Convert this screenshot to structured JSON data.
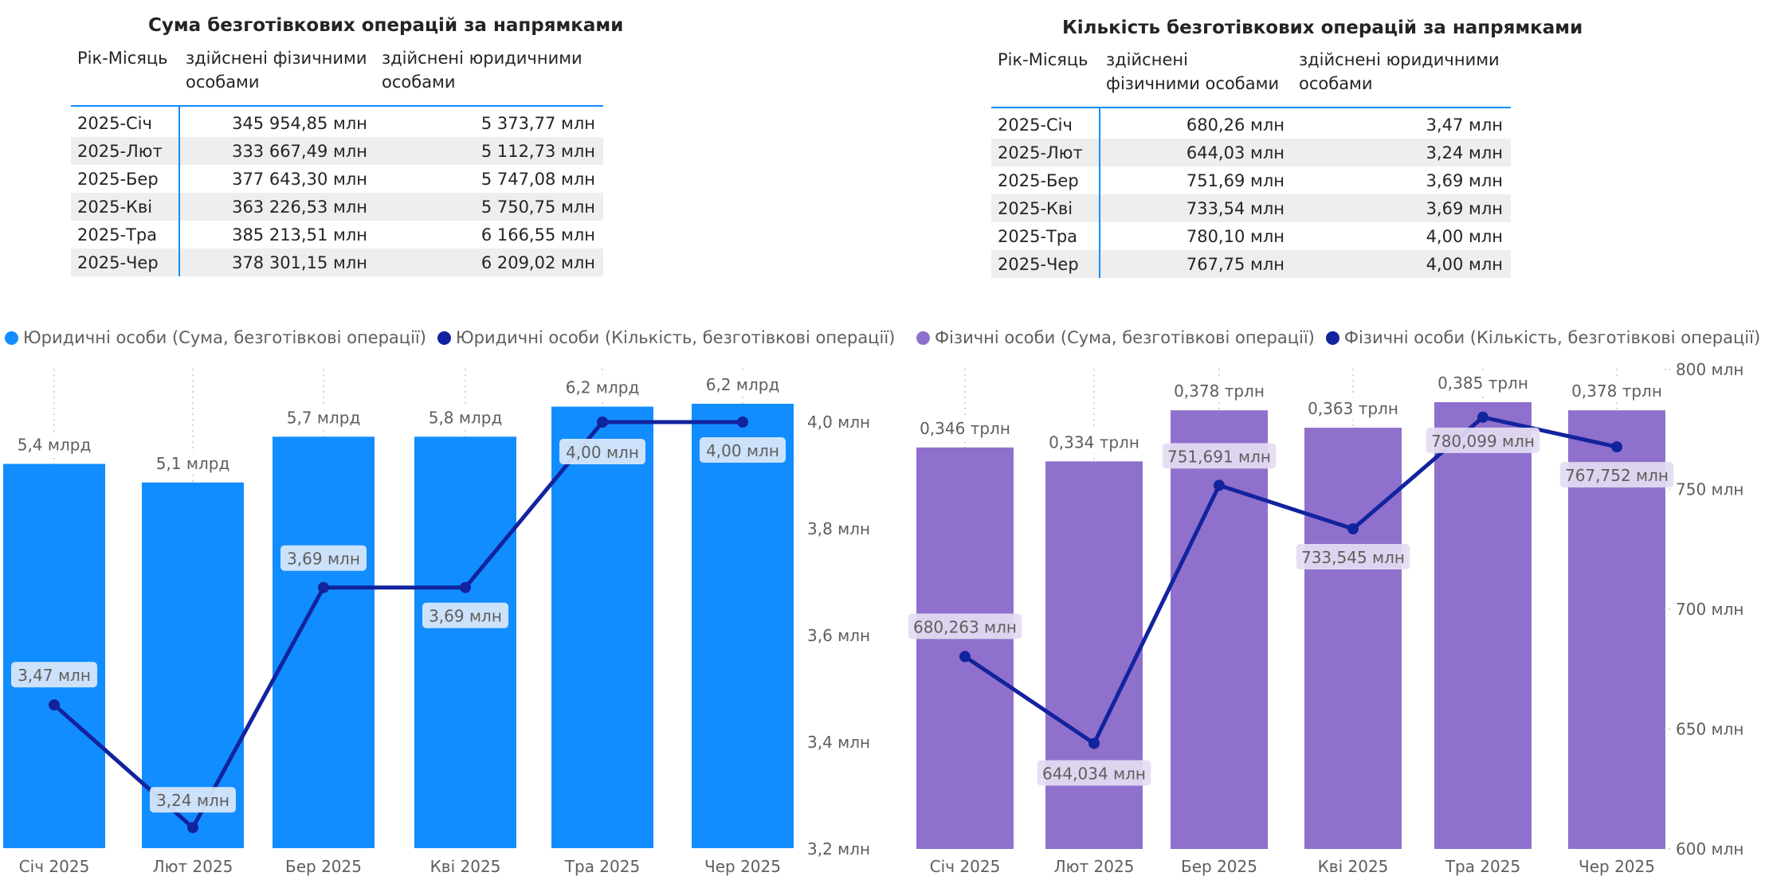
{
  "tables": [
    {
      "title": "Сума безготівкових операцій за напрямками",
      "headers": [
        "Рік-Місяць",
        "здійснені фізичними особами",
        "здійснені юридичними особами"
      ],
      "rows": [
        [
          "2025-Січ",
          "345 954,85 млн",
          "5 373,77 млн"
        ],
        [
          "2025-Лют",
          "333 667,49 млн",
          "5 112,73 млн"
        ],
        [
          "2025-Бер",
          "377 643,30 млн",
          "5 747,08 млн"
        ],
        [
          "2025-Кві",
          "363 226,53 млн",
          "5 750,75 млн"
        ],
        [
          "2025-Тра",
          "385 213,51 млн",
          "6 166,55 млн"
        ],
        [
          "2025-Чер",
          "378 301,15 млн",
          "6 209,02 млн"
        ]
      ]
    },
    {
      "title": "Кількість безготівкових операцій за напрямками",
      "headers": [
        "Рік-Місяць",
        "здійснені фізичними особами",
        "здійснені юридичними особами"
      ],
      "rows": [
        [
          "2025-Січ",
          "680,26 млн",
          "3,47 млн"
        ],
        [
          "2025-Лют",
          "644,03 млн",
          "3,24 млн"
        ],
        [
          "2025-Бер",
          "751,69 млн",
          "3,69 млн"
        ],
        [
          "2025-Кві",
          "733,54 млн",
          "3,69 млн"
        ],
        [
          "2025-Тра",
          "780,10 млн",
          "4,00 млн"
        ],
        [
          "2025-Чер",
          "767,75 млн",
          "4,00 млн"
        ]
      ]
    }
  ],
  "colors": {
    "legal_bar": "#118DFF",
    "physical_bar": "#8F70CC",
    "line": "#12239E"
  },
  "chart_data": [
    {
      "type": "bar",
      "title": "",
      "categories": [
        "Січ 2025",
        "Лют 2025",
        "Бер 2025",
        "Кві 2025",
        "Тра 2025",
        "Чер 2025"
      ],
      "series": [
        {
          "name": "Юридичні особи (Сума, безготівкові операції)",
          "kind": "bar",
          "axis": "left-hidden",
          "values": [
            5.37,
            5.11,
            5.75,
            5.75,
            6.17,
            6.21
          ],
          "labels": [
            "5,4 млрд",
            "5,1 млрд",
            "5,7 млрд",
            "5,8 млрд",
            "6,2 млрд",
            "6,2 млрд"
          ]
        },
        {
          "name": "Юридичні особи (Кількість, безготівкові операції)",
          "kind": "line",
          "axis": "right",
          "values": [
            3.47,
            3.24,
            3.69,
            3.69,
            4.0,
            4.0
          ],
          "labels": [
            "3,47 млн",
            "3,24 млн",
            "3,69 млн",
            "3,69 млн",
            "4,00 млн",
            "4,00 млн"
          ]
        }
      ],
      "y_right": {
        "min": 3.2,
        "max": 4.0,
        "ticks": [
          "3,2 млн",
          "3,4 млн",
          "3,6 млн",
          "3,8 млн",
          "4,0 млн"
        ]
      },
      "bar_scale_max": 6.21,
      "legend": "top-left"
    },
    {
      "type": "bar",
      "title": "",
      "categories": [
        "Січ 2025",
        "Лют 2025",
        "Бер 2025",
        "Кві 2025",
        "Тра 2025",
        "Чер 2025"
      ],
      "series": [
        {
          "name": "Фізичні особи (Сума, безготівкові операції)",
          "kind": "bar",
          "axis": "left-hidden",
          "values": [
            0.346,
            0.334,
            0.378,
            0.363,
            0.385,
            0.378
          ],
          "labels": [
            "0,346 трлн",
            "0,334 трлн",
            "0,378 трлн",
            "0,363 трлн",
            "0,385 трлн",
            "0,378 трлн"
          ]
        },
        {
          "name": "Фізичні особи (Кількість, безготівкові операції)",
          "kind": "line",
          "axis": "right",
          "values": [
            680.263,
            644.034,
            751.691,
            733.545,
            780.099,
            767.752
          ],
          "labels": [
            "680,263 млн",
            "644,034 млн",
            "751,691 млн",
            "733,545 млн",
            "780,099 млн",
            "767,752 млн"
          ]
        }
      ],
      "y_right": {
        "min": 600,
        "max": 800,
        "ticks": [
          "600 млн",
          "650 млн",
          "700 млн",
          "750 млн",
          "800 млн"
        ]
      },
      "bar_scale_max": 0.385,
      "legend": "top-left"
    }
  ]
}
